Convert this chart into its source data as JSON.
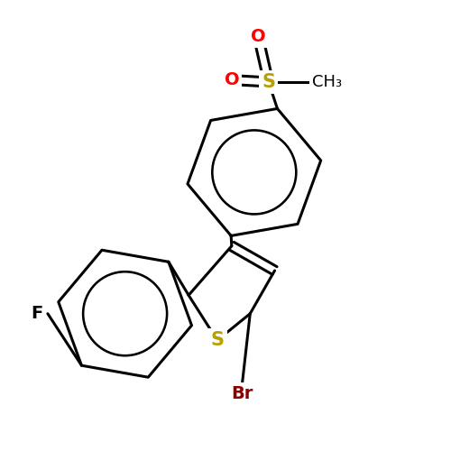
{
  "background_color": "#ffffff",
  "bond_color": "#000000",
  "bond_width": 2.2,
  "figsize": [
    5.0,
    5.0
  ],
  "dpi": 100,
  "xlim": [
    0,
    500
  ],
  "ylim": [
    0,
    500
  ]
}
